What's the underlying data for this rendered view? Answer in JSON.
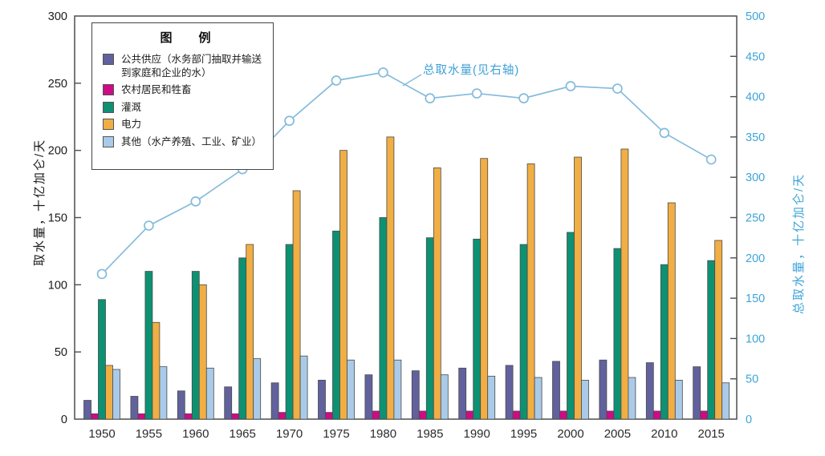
{
  "legend": {
    "title": "图　例"
  },
  "chart_data": {
    "type": "bar",
    "title": "",
    "categories": [
      "1950",
      "1955",
      "1960",
      "1965",
      "1970",
      "1975",
      "1980",
      "1985",
      "1990",
      "1995",
      "2000",
      "2005",
      "2010",
      "2015"
    ],
    "bar_series": [
      {
        "name": "公共供应（水务部门抽取并输送到家庭和企业的水）",
        "color": "#61619e",
        "values": [
          14,
          17,
          21,
          24,
          27,
          29,
          33,
          36,
          38,
          40,
          43,
          44,
          42,
          39
        ]
      },
      {
        "name": "农村居民和牲畜",
        "color": "#cf0a86",
        "values": [
          4,
          4,
          4,
          4,
          5,
          5,
          6,
          6,
          6,
          6,
          6,
          6,
          6,
          6
        ]
      },
      {
        "name": "灌溉",
        "color": "#0d9173",
        "values": [
          89,
          110,
          110,
          120,
          130,
          140,
          150,
          135,
          134,
          130,
          139,
          127,
          115,
          118
        ]
      },
      {
        "name": "电力",
        "color": "#f0ae44",
        "values": [
          40,
          72,
          100,
          130,
          170,
          200,
          210,
          187,
          194,
          190,
          195,
          201,
          161,
          133
        ]
      },
      {
        "name": "其他（水产养殖、工业、矿业）",
        "color": "#a9cbe9",
        "values": [
          37,
          39,
          38,
          45,
          47,
          44,
          44,
          33,
          32,
          31,
          29,
          31,
          29,
          27
        ]
      }
    ],
    "line_series": {
      "name": "总取水量(见右轴)",
      "axis": "right",
      "color": "#84bbdc",
      "marker_fill": "#ffffff",
      "values": [
        180,
        240,
        270,
        310,
        370,
        420,
        430,
        398,
        404,
        398,
        413,
        410,
        355,
        322
      ]
    },
    "annotation": "总取水量(见右轴)",
    "left_axis": {
      "label": "取水量，十亿加仑/天",
      "min": 0,
      "max": 300,
      "step": 50,
      "color": "#1a1a1a"
    },
    "right_axis": {
      "label": "总取水量，十亿加仑/天",
      "min": 0,
      "max": 500,
      "step": 50,
      "color": "#3ea4d9"
    },
    "xlabel": "",
    "ylabel_left": "取水量，十亿加仑/天",
    "ylabel_right": "总取水量，十亿加仑/天",
    "grid": false,
    "legend_position": "top-left-inside",
    "frame_color": "#4d4d4d",
    "tick_label_color_x": "#2b2b2b"
  }
}
